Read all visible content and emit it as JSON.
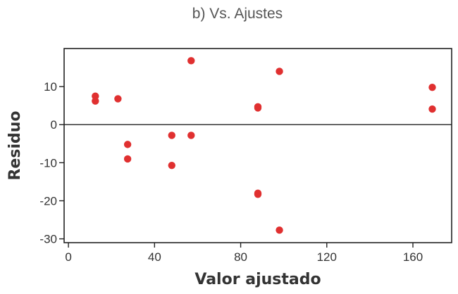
{
  "chart_data": {
    "type": "scatter",
    "title": "b) Vs. Ajustes",
    "xlabel": "Valor ajustado",
    "ylabel": "Residuo",
    "xlim": [
      -2,
      178
    ],
    "ylim": [
      -31,
      20
    ],
    "xticks": [
      0,
      40,
      80,
      120,
      160
    ],
    "yticks": [
      10,
      0,
      -10,
      -20,
      -30
    ],
    "reference_line_y": 0,
    "grid": false,
    "legend": "none",
    "point_color": "#e03030",
    "points": [
      {
        "x": 12.5,
        "y": 7.5
      },
      {
        "x": 12.5,
        "y": 6.2
      },
      {
        "x": 23,
        "y": 6.8
      },
      {
        "x": 27.5,
        "y": -5.2
      },
      {
        "x": 27.5,
        "y": -9
      },
      {
        "x": 48,
        "y": -2.8
      },
      {
        "x": 48,
        "y": -10.7
      },
      {
        "x": 57,
        "y": 16.8
      },
      {
        "x": 57,
        "y": -2.8
      },
      {
        "x": 88,
        "y": 4.7
      },
      {
        "x": 88,
        "y": 4.4
      },
      {
        "x": 88,
        "y": -18
      },
      {
        "x": 88,
        "y": -18.3
      },
      {
        "x": 98,
        "y": 14
      },
      {
        "x": 98,
        "y": -27.7
      },
      {
        "x": 169,
        "y": 9.8
      },
      {
        "x": 169,
        "y": 4.1
      }
    ]
  }
}
